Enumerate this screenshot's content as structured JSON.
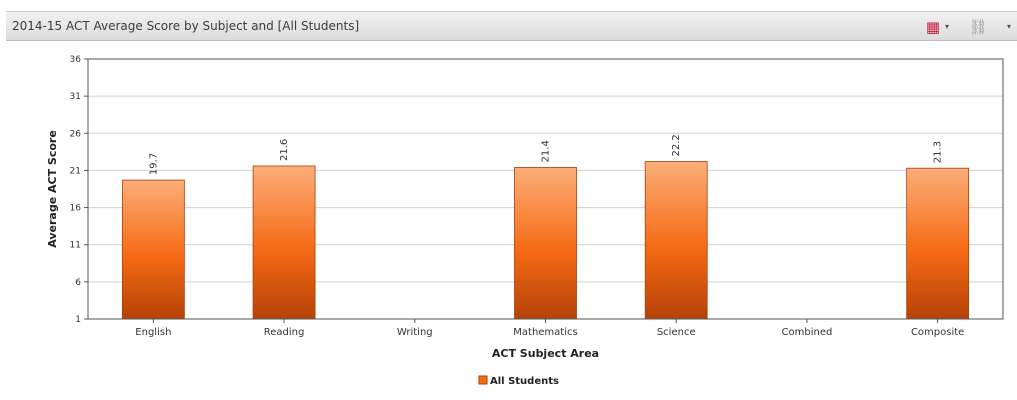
{
  "panel": {
    "title": "2014-15 ACT Average Score by Subject and [All Students]",
    "grid_icon": "▦",
    "caret": "▾",
    "link_icon": "⛓"
  },
  "colors": {
    "bar_top": "#fcae7a",
    "bar_mid": "#f56a14",
    "bar_bottom": "#b54208",
    "grid": "#d0d0d0",
    "axis": "#555555"
  },
  "chart_data": {
    "type": "bar",
    "xlabel": "ACT Subject Area",
    "ylabel": "Average ACT Score",
    "ylim": [
      1,
      36
    ],
    "yticks": [
      1,
      6,
      11,
      16,
      21,
      26,
      31,
      36
    ],
    "grid": true,
    "legend_position": "bottom-center",
    "categories": [
      "English",
      "Reading",
      "Writing",
      "Mathematics",
      "Science",
      "Combined",
      "Composite"
    ],
    "series": [
      {
        "name": "All Students",
        "values": [
          19.7,
          21.6,
          null,
          21.4,
          22.2,
          null,
          21.3
        ],
        "labels": [
          "19.7",
          "21.6",
          "",
          "21.4",
          "22.2",
          "",
          "21.3"
        ]
      }
    ]
  }
}
